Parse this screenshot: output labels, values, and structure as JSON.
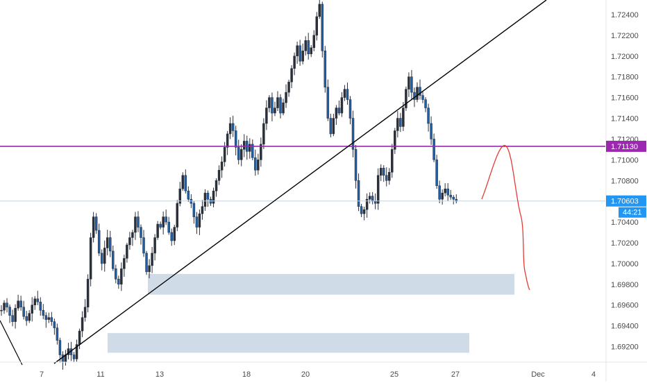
{
  "chart_data": {
    "type": "candlestick",
    "price_axis": {
      "ticks": [
        1.724,
        1.722,
        1.72,
        1.718,
        1.716,
        1.714,
        1.712,
        1.71,
        1.708,
        1.706,
        1.704,
        1.702,
        1.7,
        1.698,
        1.696,
        1.694,
        1.692
      ],
      "tick_labels": [
        "1.72400",
        "1.72200",
        "1.72000",
        "1.71800",
        "1.71600",
        "1.71400",
        "1.71200",
        "1.71000",
        "1.70800",
        "1.70600",
        "1.70400",
        "1.70200",
        "1.70000",
        "1.69800",
        "1.69600",
        "1.69400",
        "1.69200"
      ],
      "range": [
        1.6905,
        1.7254
      ]
    },
    "time_axis": {
      "labels": [
        "7",
        "11",
        "13",
        "18",
        "20",
        "25",
        "27",
        "Dec",
        "4"
      ]
    },
    "series": {
      "color_up": "#2a2f3a",
      "color_down": "#1e5fa8",
      "path": [
        [
          0,
          1.6955
        ],
        [
          1,
          1.6962
        ],
        [
          2,
          1.6958
        ],
        [
          3,
          1.695
        ],
        [
          4,
          1.6944
        ],
        [
          5,
          1.6957
        ],
        [
          6,
          1.6964
        ],
        [
          7,
          1.6958
        ],
        [
          8,
          1.6949
        ],
        [
          9,
          1.6945
        ],
        [
          10,
          1.6952
        ],
        [
          11,
          1.696
        ],
        [
          12,
          1.6966
        ],
        [
          13,
          1.6963
        ],
        [
          14,
          1.6955
        ],
        [
          15,
          1.695
        ],
        [
          16,
          1.6946
        ],
        [
          17,
          1.6948
        ],
        [
          18,
          1.6944
        ],
        [
          19,
          1.6938
        ],
        [
          20,
          1.6926
        ],
        [
          21,
          1.6912
        ],
        [
          22,
          1.6905
        ],
        [
          23,
          1.6912
        ],
        [
          24,
          1.6918
        ],
        [
          25,
          1.6912
        ],
        [
          26,
          1.6908
        ],
        [
          27,
          1.6922
        ],
        [
          28,
          1.6935
        ],
        [
          29,
          1.6948
        ],
        [
          30,
          1.6958
        ],
        [
          31,
          1.6985
        ],
        [
          32,
          1.7025
        ],
        [
          33,
          1.7045
        ],
        [
          34,
          1.7032
        ],
        [
          35,
          1.701
        ],
        [
          36,
          1.7
        ],
        [
          37,
          1.7015
        ],
        [
          38,
          1.7025
        ],
        [
          39,
          1.7012
        ],
        [
          40,
          1.6995
        ],
        [
          41,
          1.6985
        ],
        [
          42,
          1.698
        ],
        [
          43,
          1.6995
        ],
        [
          44,
          1.7005
        ],
        [
          45,
          1.7018
        ],
        [
          46,
          1.7025
        ],
        [
          47,
          1.703
        ],
        [
          48,
          1.7045
        ],
        [
          49,
          1.7035
        ],
        [
          50,
          1.7025
        ],
        [
          51,
          1.701
        ],
        [
          52,
          1.6992
        ],
        [
          53,
          1.6998
        ],
        [
          54,
          1.701
        ],
        [
          55,
          1.7025
        ],
        [
          56,
          1.7038
        ],
        [
          57,
          1.7035
        ],
        [
          58,
          1.7045
        ],
        [
          59,
          1.704
        ],
        [
          60,
          1.703
        ],
        [
          61,
          1.7022
        ],
        [
          62,
          1.7035
        ],
        [
          63,
          1.7058
        ],
        [
          64,
          1.7072
        ],
        [
          65,
          1.7085
        ],
        [
          66,
          1.707
        ],
        [
          67,
          1.7062
        ],
        [
          68,
          1.7058
        ],
        [
          69,
          1.7045
        ],
        [
          70,
          1.7035
        ],
        [
          71,
          1.7048
        ],
        [
          72,
          1.7055
        ],
        [
          73,
          1.7068
        ],
        [
          74,
          1.7062
        ],
        [
          75,
          1.7058
        ],
        [
          76,
          1.707
        ],
        [
          77,
          1.708
        ],
        [
          78,
          1.709
        ],
        [
          79,
          1.7098
        ],
        [
          80,
          1.7112
        ],
        [
          81,
          1.7125
        ],
        [
          82,
          1.7135
        ],
        [
          83,
          1.7128
        ],
        [
          84,
          1.7112
        ],
        [
          85,
          1.71
        ],
        [
          86,
          1.711
        ],
        [
          87,
          1.7118
        ],
        [
          88,
          1.7108
        ],
        [
          89,
          1.7115
        ],
        [
          90,
          1.7102
        ],
        [
          91,
          1.709
        ],
        [
          92,
          1.71
        ],
        [
          93,
          1.7115
        ],
        [
          94,
          1.7135
        ],
        [
          95,
          1.715
        ],
        [
          96,
          1.716
        ],
        [
          97,
          1.7145
        ],
        [
          98,
          1.715
        ],
        [
          99,
          1.716
        ],
        [
          100,
          1.7145
        ],
        [
          101,
          1.7155
        ],
        [
          102,
          1.7165
        ],
        [
          103,
          1.7175
        ],
        [
          104,
          1.7188
        ],
        [
          105,
          1.72
        ],
        [
          106,
          1.721
        ],
        [
          107,
          1.7195
        ],
        [
          108,
          1.7205
        ],
        [
          109,
          1.7215
        ],
        [
          110,
          1.7202
        ],
        [
          111,
          1.7208
        ],
        [
          112,
          1.722
        ],
        [
          113,
          1.7238
        ],
        [
          114,
          1.725
        ],
        [
          115,
          1.7205
        ],
        [
          116,
          1.717
        ],
        [
          117,
          1.714
        ],
        [
          118,
          1.7125
        ],
        [
          119,
          1.714
        ],
        [
          120,
          1.715
        ],
        [
          121,
          1.7145
        ],
        [
          122,
          1.716
        ],
        [
          123,
          1.7168
        ],
        [
          124,
          1.7158
        ],
        [
          125,
          1.714
        ],
        [
          126,
          1.711
        ],
        [
          127,
          1.708
        ],
        [
          128,
          1.7055
        ],
        [
          129,
          1.7048
        ],
        [
          130,
          1.7052
        ],
        [
          131,
          1.7062
        ],
        [
          132,
          1.7065
        ],
        [
          133,
          1.706
        ],
        [
          134,
          1.7058
        ],
        [
          135,
          1.7085
        ],
        [
          136,
          1.7092
        ],
        [
          137,
          1.7085
        ],
        [
          138,
          1.708
        ],
        [
          139,
          1.7088
        ],
        [
          140,
          1.711
        ],
        [
          141,
          1.7128
        ],
        [
          142,
          1.714
        ],
        [
          143,
          1.7132
        ],
        [
          144,
          1.715
        ],
        [
          145,
          1.7168
        ],
        [
          146,
          1.718
        ],
        [
          147,
          1.7165
        ],
        [
          148,
          1.7158
        ],
        [
          149,
          1.717
        ],
        [
          150,
          1.7162
        ],
        [
          151,
          1.7158
        ],
        [
          152,
          1.715
        ],
        [
          153,
          1.7135
        ],
        [
          154,
          1.712
        ],
        [
          155,
          1.71
        ],
        [
          156,
          1.7075
        ],
        [
          157,
          1.7062
        ],
        [
          158,
          1.7068
        ],
        [
          159,
          1.7072
        ],
        [
          160,
          1.7066
        ],
        [
          161,
          1.7064
        ],
        [
          162,
          1.7062
        ],
        [
          163,
          1.706
        ]
      ]
    }
  },
  "overlays": {
    "resistance_line": {
      "price": 1.7113,
      "label": "1.71130",
      "color": "#9c27b0"
    },
    "current_price": {
      "price": 1.70603,
      "label": "1.70603",
      "countdown": "44:21",
      "color": "#2196f3"
    },
    "demand_zones": [
      {
        "price_top": 1.699,
        "price_bottom": 1.697,
        "color": "#cfdce8"
      },
      {
        "price_top": 1.6933,
        "price_bottom": 1.6914,
        "color": "#cfdce8"
      }
    ],
    "trendline_color": "#000000",
    "forecast_color": "#e53935"
  },
  "colors": {
    "axis_text": "#4a4a4a",
    "axis_border": "#e6e6e6",
    "label_text_on_color": "#ffffff"
  }
}
